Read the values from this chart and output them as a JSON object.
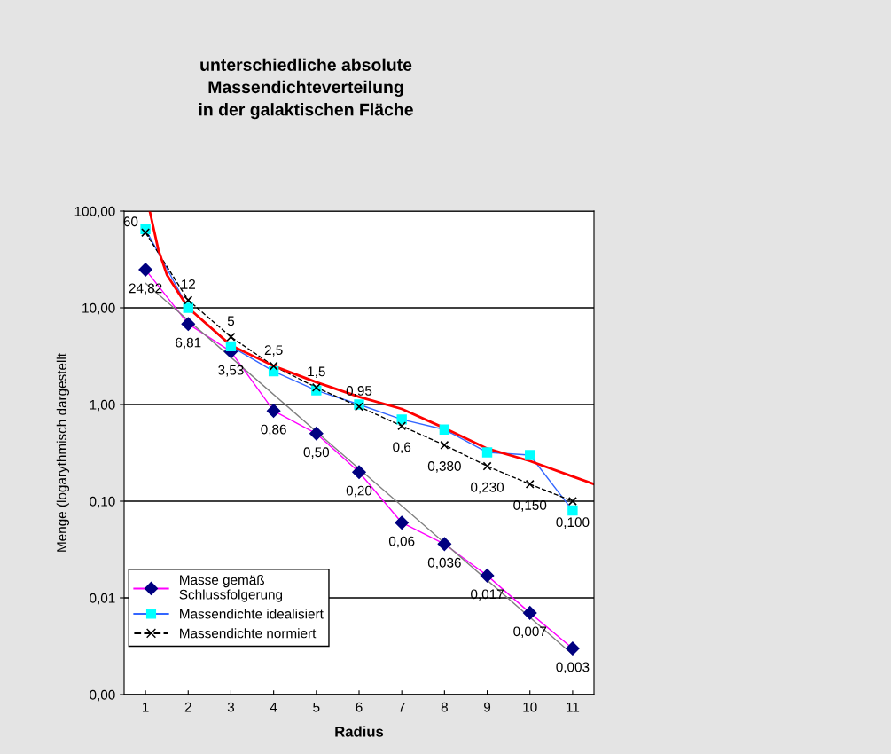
{
  "chart_data": {
    "type": "line",
    "title": "unterschiedliche absolute\nMassendichteverteilung\nin der galaktischen Fläche",
    "xlabel": "Radius",
    "ylabel": "Menge (logarythmisch dargestellt",
    "x": [
      1,
      2,
      3,
      4,
      5,
      6,
      7,
      8,
      9,
      10,
      11
    ],
    "series": [
      {
        "name": "Masse gemäß\nSchlussfolgerung",
        "color": "#ff00ff",
        "colors": [
          "#000080",
          "#000080",
          "#000080",
          "#000080",
          "#000080",
          "#000080",
          "#000080",
          "#000080",
          "#000080",
          "#000080",
          "#000080"
        ],
        "marker": "diamond",
        "values": [
          24.82,
          6.81,
          3.53,
          0.86,
          0.5,
          0.2,
          0.06,
          0.036,
          0.017,
          0.007,
          0.003
        ],
        "value_labels": [
          "24,82",
          "6,81",
          "3,53",
          "0,86",
          "0,50",
          "0,20",
          "0,06",
          "0,036",
          "0,017",
          "0,007",
          "0,003"
        ]
      },
      {
        "name": "Massendichte idealisiert",
        "color": "#3366ff",
        "colors": [
          "#00ffff",
          "#00ffff",
          "#00ffff",
          "#00ffff",
          "#00ffff",
          "#00ffff",
          "#00ffff",
          "#00ffff",
          "#00ffff",
          "#00ffff",
          "#00ffff"
        ],
        "marker": "square",
        "values": [
          65,
          10,
          4,
          2.2,
          1.4,
          1.0,
          0.7,
          0.55,
          0.32,
          0.3,
          0.08
        ]
      },
      {
        "name": "Massendichte normiert",
        "color": "#000000",
        "marker": "cross",
        "line_style": "dashed",
        "values": [
          60,
          12,
          5,
          2.5,
          1.5,
          0.95,
          0.6,
          0.38,
          0.23,
          0.15,
          0.1
        ],
        "value_labels": [
          "60",
          "12",
          "5",
          "2,5",
          "1,5",
          "0,95",
          "0,6",
          "0,380",
          "0,230",
          "0,150",
          "0,100"
        ]
      },
      {
        "color": "#ff0000",
        "marker": "none",
        "x": [
          1.1,
          1.3,
          1.5,
          2,
          3,
          4,
          5,
          6,
          7,
          8,
          9,
          10,
          11,
          11.5
        ],
        "values": [
          100,
          40,
          22,
          10,
          4.1,
          2.5,
          1.7,
          1.2,
          0.9,
          0.57,
          0.35,
          0.26,
          0.18,
          0.15
        ]
      },
      {
        "color": "#808080",
        "marker": "none",
        "x": [
          1,
          11
        ],
        "values": [
          18,
          0.0026
        ]
      }
    ],
    "log": "y",
    "xlim": [
      0.5,
      11.5
    ],
    "xticks": [
      1,
      2,
      3,
      4,
      5,
      6,
      7,
      8,
      9,
      10,
      11
    ],
    "ylim": [
      0.001,
      100
    ],
    "yticks": [
      {
        "value": 0.001,
        "label": "0,00"
      },
      {
        "value": 0.01,
        "label": "0,01"
      },
      {
        "value": 0.1,
        "label": "0,10"
      },
      {
        "value": 1,
        "label": "1,00"
      },
      {
        "value": 10,
        "label": "10,00"
      },
      {
        "value": 100,
        "label": "100,00"
      }
    ],
    "grid": "y",
    "legend": "bottom left"
  }
}
